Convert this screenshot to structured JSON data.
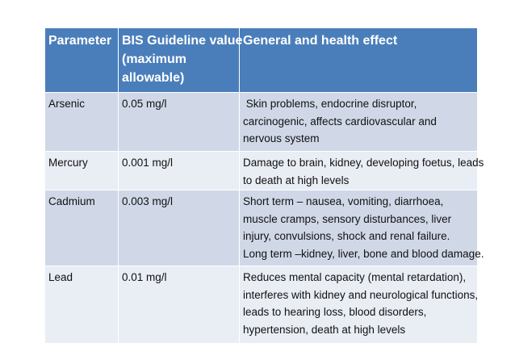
{
  "table": {
    "headers": [
      "Parameter",
      "BIS Guideline value (maximum allowable)",
      "General and health effect"
    ],
    "header_lines": {
      "h0": [
        "Parameter"
      ],
      "h1": [
        "BIS Guideline value",
        "(maximum",
        "allowable)"
      ],
      "h2": [
        "General and health effect"
      ]
    },
    "rows": [
      {
        "parameter": "Arsenic",
        "value": "0.05 mg/l",
        "effect_lines": [
          " Skin problems, endocrine disruptor,",
          "carcinogenic, affects cardiovascular and",
          "nervous system"
        ]
      },
      {
        "parameter": "Mercury",
        "value": "0.001 mg/l",
        "effect_lines": [
          "Damage to brain, kidney, developing foetus, leads",
          "to death at high levels"
        ]
      },
      {
        "parameter": "Cadmium",
        "value": "0.003 mg/l",
        "effect_lines": [
          "Short term – nausea, vomiting, diarrhoea,",
          "muscle cramps, sensory disturbances, liver",
          "injury, convulsions, shock and renal failure.",
          "Long term –kidney, liver, bone and blood damage."
        ]
      },
      {
        "parameter": "Lead",
        "value": "0.01 mg/l",
        "effect_lines": [
          "Reduces mental capacity (mental retardation),",
          "interferes with kidney and neurological functions,",
          "leads to hearing loss, blood disorders,",
          "hypertension, death at high levels"
        ]
      }
    ]
  },
  "colors": {
    "header_bg": "#4a7ebb",
    "row_odd_bg": "#d0d8e8",
    "row_even_bg": "#e9edf4"
  }
}
